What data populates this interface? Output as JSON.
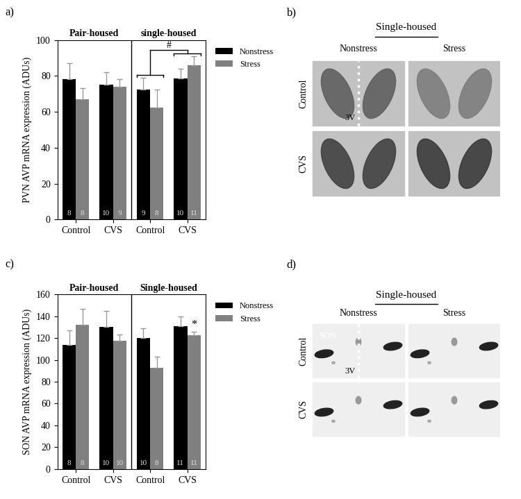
{
  "chart_data": [
    {
      "type": "bar",
      "panel_label": "a)",
      "y_label": "PVN AVP mRNA expression (ADUs)",
      "groups": [
        "Pair-housed",
        "single-housed"
      ],
      "categories": [
        "Control",
        "CVS",
        "Control",
        "CVS"
      ],
      "series": [
        {
          "name": "Nonstress",
          "color": "#000000",
          "values": [
            78,
            75,
            72.5,
            78.5
          ],
          "errors": [
            9,
            7,
            6.5,
            5.5
          ],
          "n": [
            8,
            10,
            9,
            10
          ]
        },
        {
          "name": "Stress",
          "color": "#808080",
          "values": [
            67,
            74,
            62.5,
            86
          ],
          "errors": [
            6,
            4,
            10,
            5
          ],
          "n": [
            8,
            9,
            8,
            11
          ]
        }
      ],
      "ylim": [
        0,
        100
      ],
      "yticks": [
        0,
        20,
        40,
        60,
        80,
        100
      ],
      "legend": "upper left",
      "brackets": [
        {
          "text": "#",
          "group": "single-housed",
          "categories": [
            "Control",
            "CVS"
          ]
        }
      ]
    },
    {
      "type": "bar",
      "panel_label": "c)",
      "y_label": "SON AVP mRNA expression (ADUs)",
      "groups": [
        "Pair-housed",
        "Single-housed"
      ],
      "categories": [
        "Control",
        "CVS",
        "Control",
        "CVS"
      ],
      "series": [
        {
          "name": "Nonstress",
          "color": "#000000",
          "values": [
            114,
            130.5,
            120,
            131
          ],
          "errors": [
            13,
            14.5,
            9,
            9
          ],
          "n": [
            8,
            10,
            10,
            11
          ]
        },
        {
          "name": "Stress",
          "color": "#808080",
          "values": [
            132,
            117.5,
            93,
            122.5
          ],
          "errors": [
            15,
            5.5,
            10,
            3.5
          ],
          "n": [
            8,
            10,
            8,
            11
          ]
        }
      ],
      "ylim": [
        0,
        160
      ],
      "yticks": [
        0,
        20,
        40,
        60,
        80,
        100,
        120,
        140,
        160
      ],
      "legend": "upper left",
      "marks": [
        {
          "text": "*",
          "group": "Single-housed",
          "category": "CVS",
          "series": "Stress"
        }
      ]
    }
  ],
  "images": [
    {
      "panel_label": "b)",
      "title": "Single-housed",
      "columns": [
        "Nonstress",
        "Stress"
      ],
      "rows": [
        "Control",
        "CVS"
      ],
      "labels": [
        "3V"
      ]
    },
    {
      "panel_label": "d)",
      "title": "Single-housed",
      "columns": [
        "Nonstress",
        "Stress"
      ],
      "rows": [
        "Control",
        "CVS"
      ],
      "labels": [
        "SON",
        "3V"
      ]
    }
  ]
}
